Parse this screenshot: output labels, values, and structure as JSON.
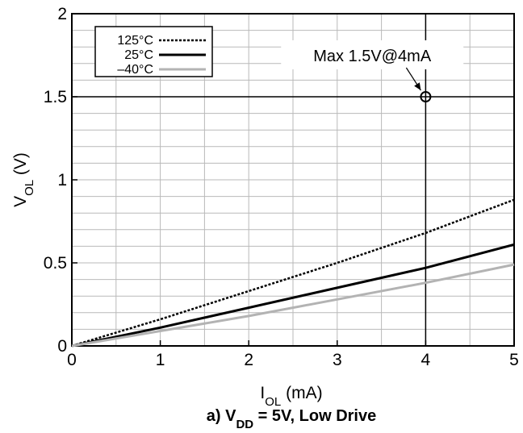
{
  "chart_data": {
    "type": "line",
    "xlabel": {
      "main": "I",
      "sub": "OL",
      "rest": " (mA)"
    },
    "ylabel": {
      "main": "V",
      "sub": "OL",
      "rest": " (V)"
    },
    "xlim": [
      0,
      5
    ],
    "ylim": [
      0,
      2
    ],
    "x_ticks": [
      0,
      1,
      2,
      3,
      4,
      5
    ],
    "y_ticks": [
      0,
      0.5,
      1,
      1.5,
      2
    ],
    "x_tick_labels": [
      "0",
      "1",
      "2",
      "3",
      "4",
      "5"
    ],
    "y_tick_labels": [
      "0",
      "0.5",
      "1",
      "1.5",
      "2"
    ],
    "grid": true,
    "legend_position": "top-left",
    "series": [
      {
        "name": "125°C",
        "style": "dotted",
        "color": "#000000",
        "x": [
          0,
          1,
          2,
          3,
          4,
          5
        ],
        "y": [
          0,
          0.16,
          0.33,
          0.5,
          0.68,
          0.88
        ]
      },
      {
        "name": "25°C",
        "style": "solid",
        "color": "#000000",
        "x": [
          0,
          1,
          2,
          3,
          4,
          5
        ],
        "y": [
          0,
          0.11,
          0.23,
          0.35,
          0.47,
          0.61
        ]
      },
      {
        "name": "–40°C",
        "style": "solid",
        "color": "#b3b3b3",
        "x": [
          0,
          1,
          2,
          3,
          4,
          5
        ],
        "y": [
          0,
          0.09,
          0.18,
          0.28,
          0.38,
          0.49
        ]
      }
    ],
    "annotation": {
      "text": "Max 1.5V@4mA",
      "x": 4,
      "y": 1.5
    },
    "caption": {
      "prefix": "a) V",
      "sub": "DD",
      "rest": " = 5V, Low Drive"
    }
  }
}
